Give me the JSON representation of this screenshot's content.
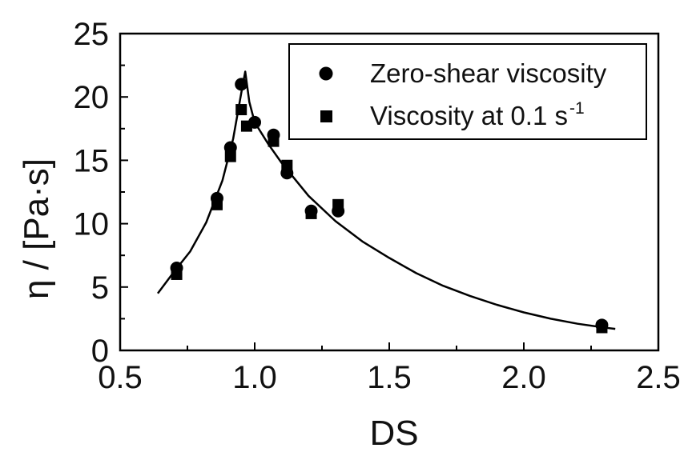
{
  "chart_data": {
    "type": "scatter",
    "xlabel": "DS",
    "ylabel": "η / [Pa·s]",
    "xlim": [
      0.5,
      2.5
    ],
    "ylim": [
      0,
      25
    ],
    "x_ticks": [
      "0.5",
      "1.0",
      "1.5",
      "2.0",
      "2.5"
    ],
    "y_ticks": [
      "0",
      "5",
      "10",
      "15",
      "20",
      "25"
    ],
    "grid": false,
    "legend_position": "top-right",
    "series": [
      {
        "name": "Zero-shear viscosity",
        "marker": "circle",
        "color": "#000000",
        "points": [
          {
            "x": 0.71,
            "y": 6.5
          },
          {
            "x": 0.86,
            "y": 12.0
          },
          {
            "x": 0.91,
            "y": 16.0
          },
          {
            "x": 0.95,
            "y": 21.0
          },
          {
            "x": 1.0,
            "y": 18.0
          },
          {
            "x": 1.07,
            "y": 17.0
          },
          {
            "x": 1.12,
            "y": 14.0
          },
          {
            "x": 1.21,
            "y": 11.0
          },
          {
            "x": 1.31,
            "y": 11.0
          },
          {
            "x": 2.29,
            "y": 2.0
          }
        ]
      },
      {
        "name_prefix": "Viscosity at 0.1 s",
        "name_superscript": "-1",
        "marker": "square",
        "color": "#000000",
        "points": [
          {
            "x": 0.71,
            "y": 6.0
          },
          {
            "x": 0.86,
            "y": 11.5
          },
          {
            "x": 0.91,
            "y": 15.3
          },
          {
            "x": 0.95,
            "y": 19.0
          },
          {
            "x": 0.97,
            "y": 17.7
          },
          {
            "x": 1.07,
            "y": 16.5
          },
          {
            "x": 1.12,
            "y": 14.6
          },
          {
            "x": 1.21,
            "y": 10.8
          },
          {
            "x": 1.31,
            "y": 11.5
          },
          {
            "x": 2.29,
            "y": 1.8
          }
        ]
      },
      {
        "marker": "line",
        "color": "#000000",
        "points": [
          {
            "x": 0.64,
            "y": 4.5
          },
          {
            "x": 0.7,
            "y": 6.2
          },
          {
            "x": 0.76,
            "y": 7.8
          },
          {
            "x": 0.82,
            "y": 10.1
          },
          {
            "x": 0.88,
            "y": 13.4
          },
          {
            "x": 0.92,
            "y": 16.7
          },
          {
            "x": 0.95,
            "y": 20.3
          },
          {
            "x": 0.965,
            "y": 22.0
          },
          {
            "x": 0.98,
            "y": 19.6
          },
          {
            "x": 1.0,
            "y": 18.0
          },
          {
            "x": 1.05,
            "y": 16.3
          },
          {
            "x": 1.1,
            "y": 14.8
          },
          {
            "x": 1.2,
            "y": 12.2
          },
          {
            "x": 1.3,
            "y": 10.2
          },
          {
            "x": 1.4,
            "y": 8.6
          },
          {
            "x": 1.5,
            "y": 7.3
          },
          {
            "x": 1.6,
            "y": 6.1
          },
          {
            "x": 1.7,
            "y": 5.1
          },
          {
            "x": 1.8,
            "y": 4.3
          },
          {
            "x": 1.9,
            "y": 3.6
          },
          {
            "x": 2.0,
            "y": 3.0
          },
          {
            "x": 2.1,
            "y": 2.5
          },
          {
            "x": 2.2,
            "y": 2.1
          },
          {
            "x": 2.3,
            "y": 1.8
          },
          {
            "x": 2.34,
            "y": 1.7
          }
        ]
      }
    ]
  }
}
